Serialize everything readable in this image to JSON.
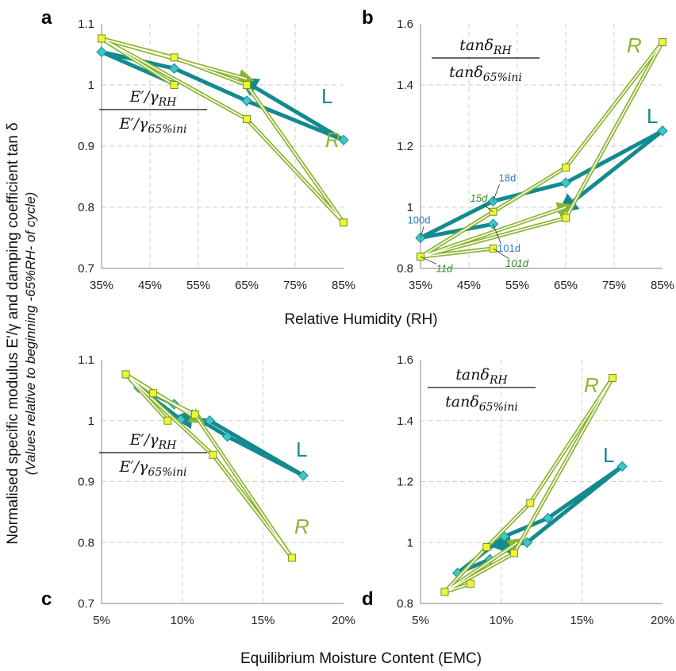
{
  "figure": {
    "y_title_main": "Normalised specific modulus E'/γ and damping coefficient tan δ",
    "y_title_sub": "(Values relative to beginning -65%RH- of cycle)",
    "x_title_top": "Relative Humidity (RH)",
    "x_title_bottom": "Equilibrium Moisture Content (EMC)"
  },
  "colors": {
    "L": "#138a8f",
    "L_marker": "#3fc6c9",
    "R": "#8bb52e",
    "R_marker": "#f2f23a",
    "day_L": "#2a7ec4",
    "day_R": "#2e8b22",
    "grid": "#cfcfcf"
  },
  "chart_data": [
    {
      "panel": "a",
      "type": "line",
      "formula_num": "E′/γRH",
      "formula_den": "E′/γ65%ini",
      "xlim": [
        35,
        85
      ],
      "ylim": [
        0.7,
        1.1
      ],
      "xticks": [
        "35%",
        "45%",
        "55%",
        "65%",
        "75%",
        "85%"
      ],
      "yticks": [
        "0.7",
        "0.8",
        "0.9",
        "1",
        "1.1"
      ],
      "series": [
        {
          "name": "L",
          "points": [
            [
              50,
              1.002
            ],
            [
              35,
              1.054
            ],
            [
              50,
              1.027
            ],
            [
              65,
              0.974
            ],
            [
              85,
              0.91
            ],
            [
              65,
              1.004
            ]
          ]
        },
        {
          "name": "R",
          "points": [
            [
              50,
              1.0
            ],
            [
              35,
              1.076
            ],
            [
              50,
              1.045
            ],
            [
              65,
              1.0
            ],
            [
              85,
              0.775
            ],
            [
              65,
              0.944
            ],
            [
              35,
              1.076
            ],
            [
              65,
              1.01
            ]
          ]
        }
      ]
    },
    {
      "panel": "b",
      "type": "line",
      "formula_num": "tanδRH",
      "formula_den": "tanδ65%ini",
      "xlim": [
        35,
        85
      ],
      "ylim": [
        0.8,
        1.6
      ],
      "xticks": [
        "35%",
        "45%",
        "55%",
        "65%",
        "75%",
        "85%"
      ],
      "yticks": [
        "0.8",
        "1",
        "1.2",
        "1.4",
        "1.6"
      ],
      "series": [
        {
          "name": "L",
          "points": [
            [
              50,
              0.945
            ],
            [
              35,
              0.9
            ],
            [
              50,
              1.02
            ],
            [
              65,
              1.08
            ],
            [
              85,
              1.25
            ],
            [
              65,
              1.0
            ]
          ]
        },
        {
          "name": "R",
          "points": [
            [
              50,
              0.865
            ],
            [
              35,
              0.838
            ],
            [
              50,
              0.985
            ],
            [
              65,
              1.13
            ],
            [
              85,
              1.54
            ],
            [
              65,
              0.965
            ],
            [
              35,
              0.838
            ],
            [
              65,
              1.0
            ]
          ]
        }
      ],
      "annotations": [
        {
          "text": "100d",
          "series": "L",
          "x": 35,
          "y": 0.9
        },
        {
          "text": "18d",
          "series": "L",
          "x": 50,
          "y": 1.02
        },
        {
          "text": "101d",
          "series": "L",
          "x": 50,
          "y": 0.945
        },
        {
          "text": "15d",
          "series": "R",
          "x": 50,
          "y": 0.985
        },
        {
          "text": "11d",
          "series": "R",
          "x": 35,
          "y": 0.838
        },
        {
          "text": "101d",
          "series": "R",
          "x": 50,
          "y": 0.865
        }
      ]
    },
    {
      "panel": "c",
      "type": "line",
      "formula_num": "E′/γRH",
      "formula_den": "E′/γ65%ini",
      "xlim": [
        5,
        20
      ],
      "ylim": [
        0.7,
        1.1
      ],
      "xticks": [
        "5%",
        "10%",
        "15%",
        "20%"
      ],
      "yticks": [
        "0.7",
        "0.8",
        "0.9",
        "1",
        "1.1"
      ],
      "series": [
        {
          "name": "L",
          "points": [
            [
              9.9,
              1.002
            ],
            [
              7.3,
              1.054
            ],
            [
              9.5,
              1.027
            ],
            [
              12.8,
              0.974
            ],
            [
              17.5,
              0.91
            ],
            [
              11.7,
              1.0
            ],
            [
              10.0,
              1.004
            ]
          ]
        },
        {
          "name": "R",
          "points": [
            [
              9.1,
              1.0
            ],
            [
              6.5,
              1.076
            ],
            [
              8.2,
              1.045
            ],
            [
              10.8,
              1.01
            ],
            [
              16.8,
              0.775
            ],
            [
              11.9,
              0.944
            ],
            [
              6.5,
              1.076
            ],
            [
              11.0,
              1.002
            ]
          ]
        }
      ]
    },
    {
      "panel": "d",
      "type": "line",
      "formula_num": "tanδRH",
      "formula_den": "tanδ65%ini",
      "xlim": [
        5,
        20
      ],
      "ylim": [
        0.8,
        1.6
      ],
      "xticks": [
        "5%",
        "10%",
        "15%",
        "20%"
      ],
      "yticks": [
        "0.8",
        "1",
        "1.2",
        "1.4",
        "1.6"
      ],
      "series": [
        {
          "name": "L",
          "points": [
            [
              9.3,
              0.945
            ],
            [
              7.3,
              0.9
            ],
            [
              10.2,
              1.02
            ],
            [
              12.9,
              1.08
            ],
            [
              17.5,
              1.25
            ],
            [
              11.6,
              1.0
            ],
            [
              10.0,
              0.99
            ]
          ]
        },
        {
          "name": "R",
          "points": [
            [
              8.1,
              0.865
            ],
            [
              6.5,
              0.838
            ],
            [
              9.1,
              0.985
            ],
            [
              11.8,
              1.13
            ],
            [
              16.9,
              1.54
            ],
            [
              10.8,
              0.965
            ],
            [
              6.5,
              0.838
            ],
            [
              11.0,
              1.0
            ]
          ]
        }
      ]
    }
  ]
}
